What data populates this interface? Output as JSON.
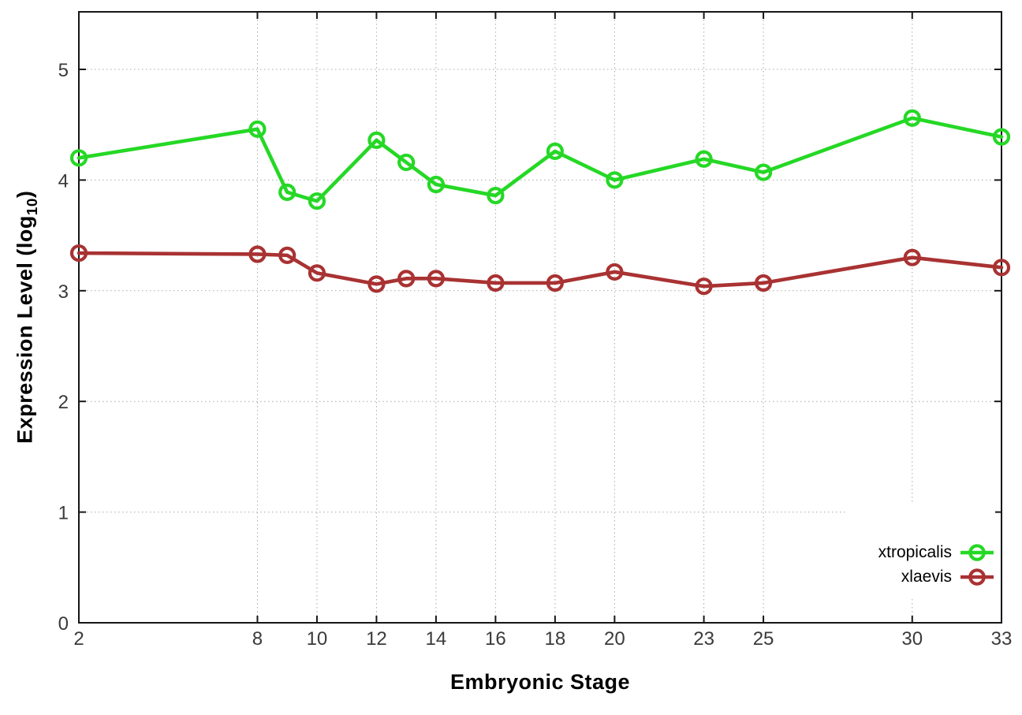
{
  "chart_data": {
    "type": "line",
    "title": "",
    "xlabel": "Embryonic Stage",
    "ylabel": {
      "pre": "Expression Level (log",
      "sub": "10",
      "post": ")"
    },
    "x": [
      2,
      8,
      9,
      10,
      12,
      13,
      14,
      16,
      18,
      20,
      23,
      25,
      30,
      33
    ],
    "xticks": [
      2,
      8,
      10,
      12,
      14,
      16,
      18,
      20,
      23,
      25,
      30,
      33
    ],
    "xtick_labels": [
      "2",
      "8",
      "10",
      "12",
      "14",
      "16",
      "18",
      "20",
      "23",
      "25",
      "30",
      "33"
    ],
    "yticks": [
      0,
      1,
      2,
      3,
      4,
      5
    ],
    "ytick_labels": [
      "0",
      "1",
      "2",
      "3",
      "4",
      "5"
    ],
    "xlim": [
      2,
      33
    ],
    "ylim": [
      0,
      5.5
    ],
    "grid": true,
    "legend": {
      "position": "inside-bottom-right",
      "items": [
        "xtropicalis",
        "xlaevis"
      ]
    },
    "series": [
      {
        "name": "xtropicalis",
        "color": "#25d825",
        "marker": "open-circle",
        "values": [
          4.2,
          4.46,
          3.89,
          3.81,
          4.36,
          4.16,
          3.96,
          3.86,
          4.26,
          4.0,
          4.19,
          4.07,
          4.56,
          4.39
        ]
      },
      {
        "name": "xlaevis",
        "color": "#a93232",
        "marker": "open-circle",
        "values": [
          3.34,
          3.33,
          3.32,
          3.16,
          3.06,
          3.11,
          3.11,
          3.07,
          3.07,
          3.17,
          3.04,
          3.07,
          3.3,
          3.21
        ]
      }
    ]
  },
  "style": {
    "background": "#ffffff",
    "grid_color": "#a8a8a8",
    "axis_color": "#161616",
    "tick_text_color": "#3a3a3a",
    "title_text_color": "#000000"
  }
}
